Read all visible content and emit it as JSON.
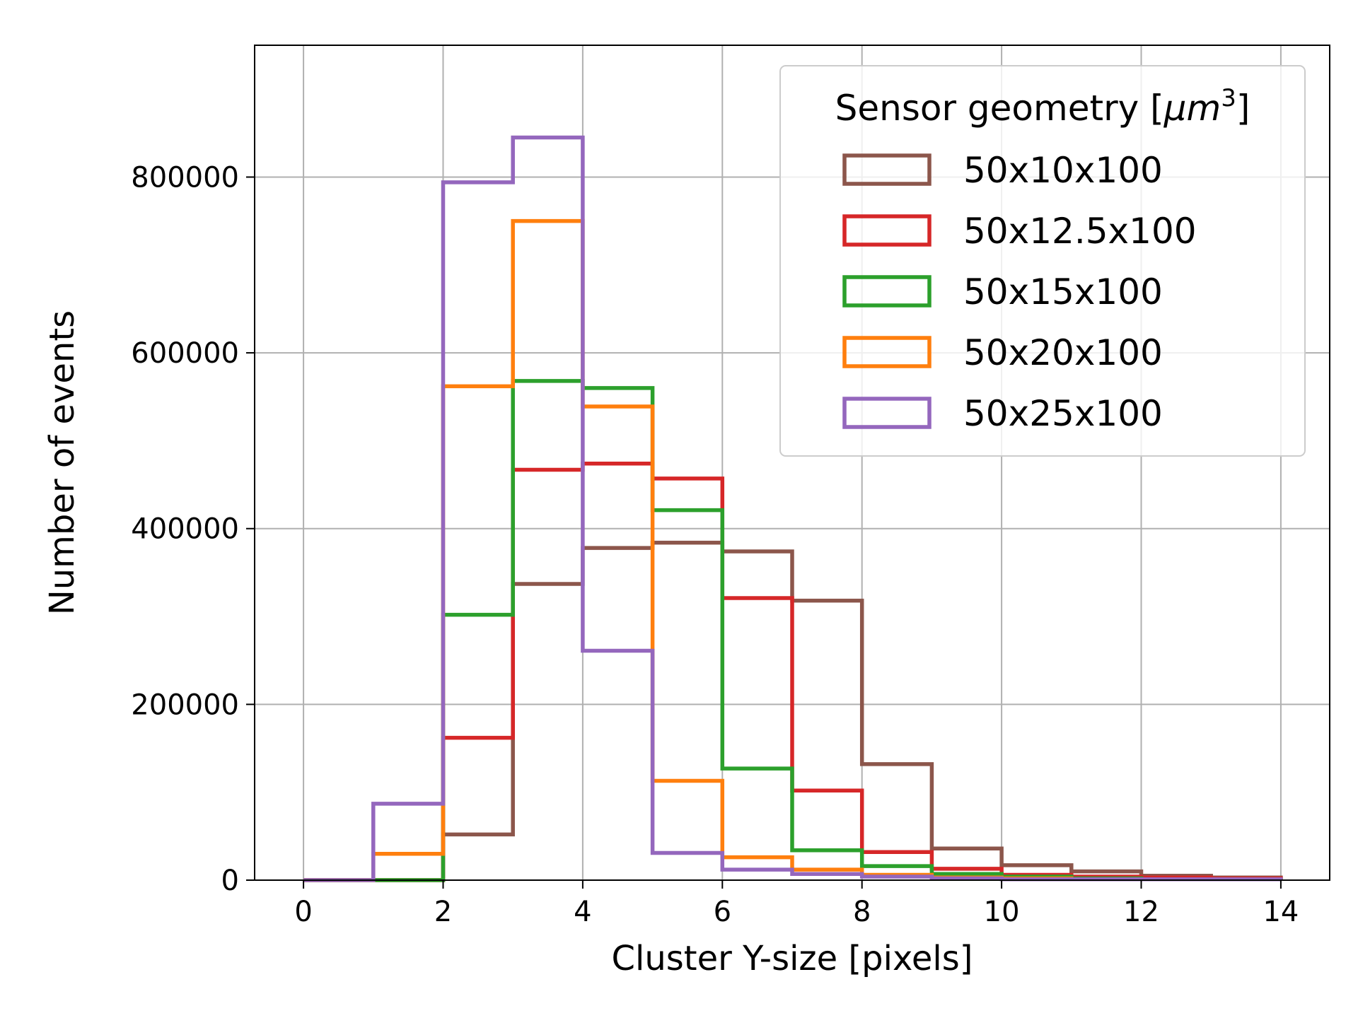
{
  "chart_data": {
    "type": "step-histogram",
    "title": "",
    "xlabel": "Cluster Y-size [pixels]",
    "ylabel": "Number of events",
    "xlim": [
      -0.7,
      14.7
    ],
    "ylim": [
      0,
      950000
    ],
    "xticks": [
      0,
      2,
      4,
      6,
      8,
      10,
      12,
      14
    ],
    "xtick_labels": [
      "0",
      "2",
      "4",
      "6",
      "8",
      "10",
      "12",
      "14"
    ],
    "yticks": [
      0,
      200000,
      400000,
      600000,
      800000
    ],
    "ytick_labels": [
      "0",
      "200000",
      "400000",
      "600000",
      "800000"
    ],
    "grid": true,
    "bin_edges": [
      0,
      1,
      2,
      3,
      4,
      5,
      6,
      7,
      8,
      9,
      10,
      11,
      12,
      13,
      14
    ],
    "legend": {
      "title_prefix": "Sensor geometry [",
      "title_math": "μm",
      "title_sup": "3",
      "title_suffix": "]",
      "placement": "upper right"
    },
    "series": [
      {
        "name": "50x10x100",
        "color": "#8c564b",
        "values": [
          0,
          0,
          52000,
          337000,
          378000,
          384000,
          374000,
          318000,
          132000,
          36000,
          17000,
          10000,
          5000,
          3000
        ]
      },
      {
        "name": "50x12.5x100",
        "color": "#d62728",
        "values": [
          0,
          0,
          162000,
          467000,
          474000,
          457000,
          321000,
          102000,
          32000,
          13000,
          6000,
          4000,
          3000,
          2000
        ]
      },
      {
        "name": "50x15x100",
        "color": "#2ca02c",
        "values": [
          0,
          0,
          302000,
          568000,
          560000,
          421000,
          127000,
          34000,
          16000,
          7000,
          4000,
          2000,
          1000,
          1000
        ]
      },
      {
        "name": "50x20x100",
        "color": "#ff7f0e",
        "values": [
          0,
          30000,
          562000,
          750000,
          539000,
          113000,
          26000,
          12000,
          6000,
          3000,
          2000,
          1000,
          1000,
          1000
        ]
      },
      {
        "name": "50x25x100",
        "color": "#9467bd",
        "values": [
          0,
          87000,
          794000,
          845000,
          261000,
          31000,
          12000,
          7000,
          4000,
          2000,
          1000,
          1000,
          1000,
          1000
        ]
      }
    ]
  }
}
